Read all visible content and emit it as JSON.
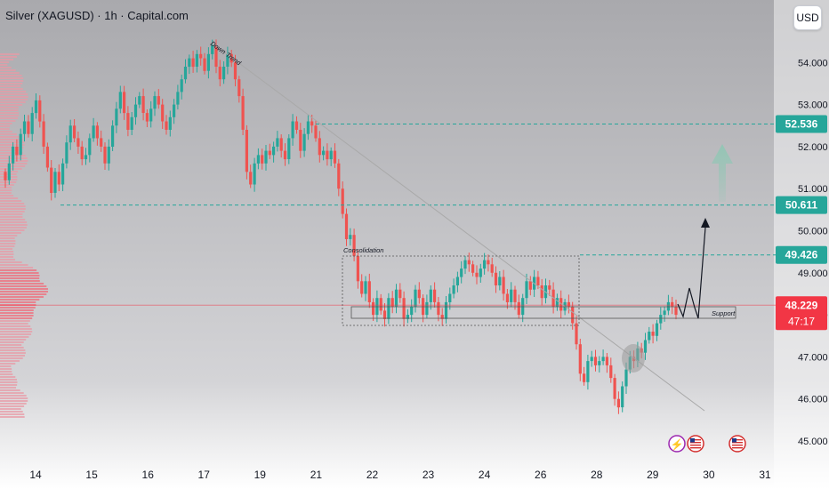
{
  "header": {
    "title": "Silver (XAGUSD) · 1h · Capital.com",
    "currency": "USD"
  },
  "colors": {
    "up": "#26a69a",
    "down": "#ef5350",
    "level_line": "#26a69a",
    "current_price": "#f23645",
    "trend_line": "#a9a9a9",
    "forecast_arrow": "#8fc7b4"
  },
  "chart_data": {
    "type": "candlestick",
    "title": "Silver (XAGUSD) · 1h · Capital.com",
    "x_ticks": [
      "14",
      "15",
      "16",
      "17",
      "19",
      "21",
      "22",
      "23",
      "24",
      "26",
      "28",
      "29",
      "30",
      "31"
    ],
    "y_ticks": [
      "45.000",
      "46.000",
      "47.000",
      "48.000",
      "49.000",
      "50.000",
      "51.000",
      "52.000",
      "53.000",
      "54.000"
    ],
    "ylim": [
      44.8,
      54.6
    ],
    "series": [
      {
        "values": [
          51.2,
          51.6,
          52.0,
          51.8,
          52.3,
          52.6,
          52.3,
          52.8,
          53.1,
          52.6,
          52.0,
          51.5,
          50.9,
          51.4,
          51.1,
          51.6,
          52.1,
          52.5,
          52.2,
          52.0,
          51.7,
          51.8,
          52.2,
          52.5,
          52.2,
          52.0,
          51.6,
          52.0,
          52.5,
          52.9,
          53.3,
          52.8,
          52.4,
          52.7,
          53.0,
          53.2,
          52.8,
          52.6,
          52.9,
          53.2,
          53.0,
          52.6,
          52.4,
          52.7,
          53.0,
          53.3,
          53.6,
          53.9,
          54.1,
          53.9,
          54.2,
          54.1,
          53.8,
          54.2,
          54.4,
          53.9,
          53.6,
          53.9,
          54.2,
          54.0,
          53.6,
          53.2,
          52.4,
          51.4,
          51.1,
          51.6,
          51.8,
          51.6,
          51.9,
          51.8,
          52.0,
          52.2,
          51.9,
          51.7,
          52.2,
          52.6,
          52.4,
          51.9,
          52.3,
          52.6,
          52.5,
          52.2,
          51.8,
          51.9,
          51.7,
          51.9,
          51.6,
          51.0,
          50.4,
          49.8,
          49.9,
          49.4,
          48.8,
          48.5,
          48.8,
          48.3,
          48.0,
          48.4,
          48.1,
          47.9,
          48.4,
          48.2,
          48.6,
          48.4,
          47.9,
          48.0,
          48.2,
          48.6,
          48.4,
          48.0,
          48.3,
          48.6,
          48.3,
          48.0,
          47.9,
          48.3,
          48.5,
          48.7,
          48.9,
          49.1,
          49.3,
          49.2,
          49.0,
          48.9,
          49.1,
          49.3,
          49.2,
          49.0,
          48.7,
          48.9,
          48.5,
          48.3,
          48.6,
          48.3,
          48.0,
          48.4,
          48.8,
          48.6,
          48.9,
          48.7,
          48.4,
          48.7,
          48.6,
          48.2,
          48.4,
          48.1,
          48.3,
          48.2,
          47.8,
          47.3,
          46.6,
          46.4,
          46.9,
          47.0,
          46.8,
          46.9,
          47.0,
          46.8,
          46.5,
          46.0,
          45.8,
          46.3,
          46.7,
          47.0,
          46.9,
          47.2,
          47.1,
          47.4,
          47.6,
          47.5,
          47.8,
          48.0,
          48.1,
          48.3,
          48.2,
          48.0
        ]
      }
    ],
    "levels": [
      "52.536",
      "50.611",
      "49.426"
    ],
    "current_price": "48.229",
    "countdown": "47:17",
    "annotations": {
      "trend": "Down Trend",
      "range": "Consolidation",
      "support": "Support"
    }
  }
}
